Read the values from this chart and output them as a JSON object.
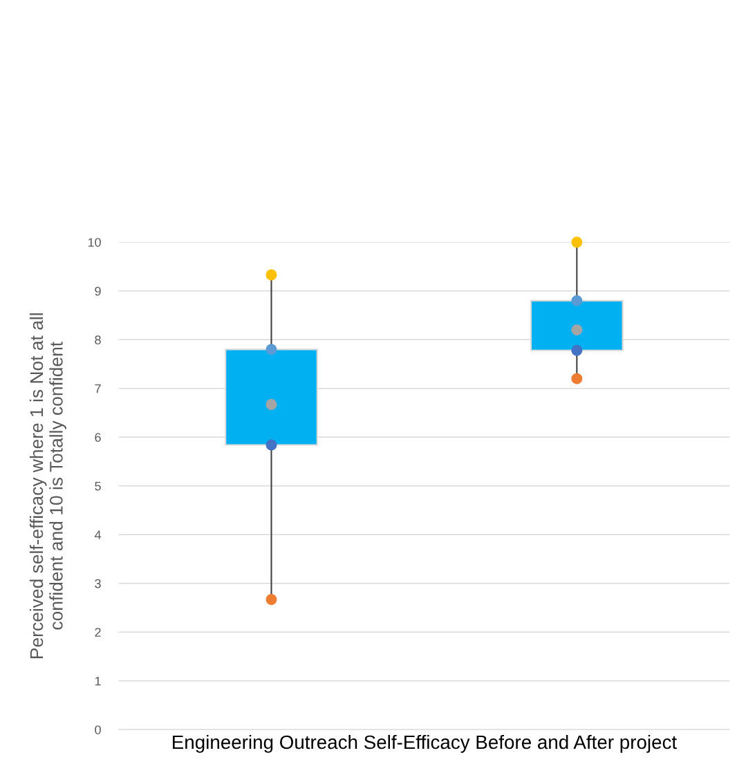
{
  "chart_data": {
    "type": "box",
    "xlabel": "Engineering Outreach Self-Efficacy Before and After project",
    "ylabel": "Perceived self-efficacy where 1 is Not at all\nconfident and 10 is Totally confident",
    "categories": [
      null,
      null
    ],
    "boxes": [
      {
        "low": 2.67,
        "q1": 5.84,
        "q3": 7.8,
        "high": 9.33
      },
      {
        "low": 7.2,
        "q1": 7.78,
        "q3": 8.8,
        "high": 10
      }
    ],
    "color": "#00b0f0",
    "series": [
      {
        "type": "scatter",
        "color": "#ffc000",
        "values": [
          9.33,
          10
        ]
      },
      {
        "type": "scatter",
        "color": "#5b9bd5",
        "values": [
          7.8,
          8.8
        ]
      },
      {
        "type": "scatter",
        "color": "#a5a5a5",
        "values": [
          6.67,
          8.2
        ]
      },
      {
        "type": "scatter",
        "color": "#4472c4",
        "values": [
          5.84,
          7.78
        ]
      },
      {
        "type": "scatter",
        "color": "#ed7d31",
        "values": [
          2.67,
          7.2
        ]
      }
    ],
    "marker": "circle",
    "ylim": [
      0,
      10
    ],
    "yticks": [
      0,
      1,
      2,
      3,
      4,
      5,
      6,
      7,
      8,
      9,
      10
    ],
    "grid": "y"
  }
}
